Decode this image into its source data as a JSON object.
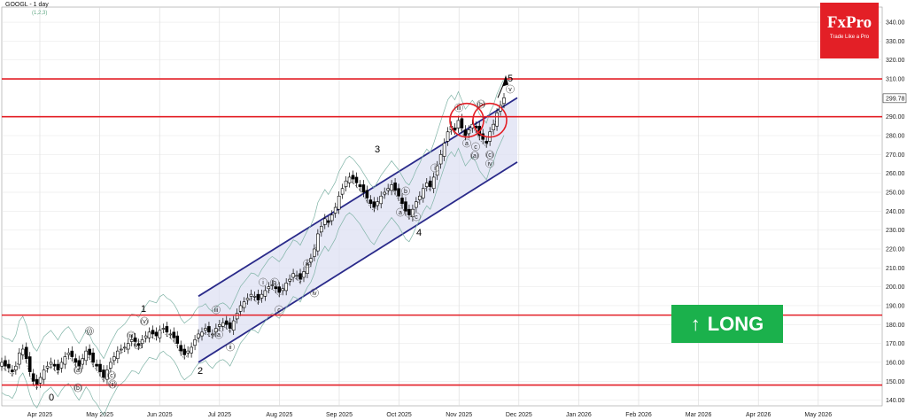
{
  "header": {
    "title": "GOOGL - 1 day",
    "subtitle": "(1,2,3)"
  },
  "brand": {
    "name": "FxPro",
    "tagline": "Trade Like a Pro"
  },
  "signal": {
    "label": "LONG",
    "arrow": "↑"
  },
  "colors": {
    "accent": "#e31f26",
    "signal": "#1bb14c",
    "channel": "#2a2a8a",
    "level": "#e31f26",
    "up": "#ffffff",
    "down": "#000000"
  },
  "chart_data": {
    "type": "candlestick",
    "xlabels": [
      "Apr 2025",
      "May 2025",
      "Jun 2025",
      "Jul 2025",
      "Aug 2025",
      "Sep 2025",
      "Oct 2025",
      "Nov 2025",
      "Dec 2025",
      "Jan 2026",
      "Feb 2026",
      "Mar 2026",
      "Apr 2026",
      "May 2026"
    ],
    "ytick_labels": [
      "140.00",
      "150.00",
      "160.00",
      "170.00",
      "180.00",
      "190.00",
      "200.00",
      "210.00",
      "220.00",
      "230.00",
      "240.00",
      "250.00",
      "260.00",
      "270.00",
      "280.00",
      "290.00",
      "299.78",
      "310.00",
      "320.00",
      "330.00",
      "340.00"
    ],
    "ylim": [
      137,
      348
    ],
    "current_price": 299.78,
    "horizontal_levels": [
      310,
      290,
      185,
      148
    ],
    "channel": {
      "upper": [
        [
          "Jul 2025",
          195
        ],
        [
          "Dec 2025",
          300
        ]
      ],
      "lower": [
        [
          "Jul 2025",
          160
        ],
        [
          "Dec 2025",
          266
        ]
      ]
    },
    "highlight_circles": [
      [
        "Nov 2025",
        290
      ],
      [
        "Nov 2025 late",
        290
      ]
    ],
    "wave_labels": [
      "0",
      "1",
      "2",
      "3",
      "4",
      "5",
      "i",
      "ii",
      "iii",
      "iv",
      "v",
      "a",
      "b",
      "c",
      "(a)",
      "(b)",
      "(c)",
      "(i)",
      "(ii)",
      "(iii)",
      "(iv)",
      "(v)"
    ],
    "months_idx_ranges": {
      "note": "trading days approx. Mar 25 2025 to Nov 26 2025"
    },
    "closes": [
      160,
      158,
      157,
      155,
      158,
      165,
      167,
      162,
      155,
      150,
      148,
      152,
      156,
      158,
      160,
      158,
      156,
      160,
      163,
      165,
      163,
      160,
      158,
      162,
      166,
      164,
      160,
      158,
      155,
      152,
      156,
      160,
      163,
      166,
      167,
      168,
      170,
      172,
      171,
      169,
      172,
      174,
      176,
      175,
      174,
      177,
      178,
      176,
      175,
      173,
      170,
      166,
      164,
      166,
      168,
      172,
      175,
      176,
      178,
      176,
      175,
      178,
      180,
      181,
      180,
      178,
      182,
      186,
      190,
      192,
      194,
      196,
      195,
      193,
      196,
      198,
      200,
      201,
      199,
      197,
      199,
      202,
      204,
      207,
      206,
      204,
      208,
      212,
      215,
      220,
      228,
      232,
      236,
      234,
      238,
      242,
      248,
      252,
      256,
      258,
      257,
      255,
      253,
      250,
      247,
      244,
      242,
      245,
      248,
      250,
      252,
      254,
      251,
      248,
      244,
      240,
      238,
      241,
      245,
      248,
      252,
      255,
      253,
      258,
      264,
      270,
      276,
      282,
      285,
      283,
      288,
      284,
      280,
      283,
      286,
      284,
      280,
      278,
      276,
      282,
      286,
      292,
      296,
      300
    ]
  }
}
